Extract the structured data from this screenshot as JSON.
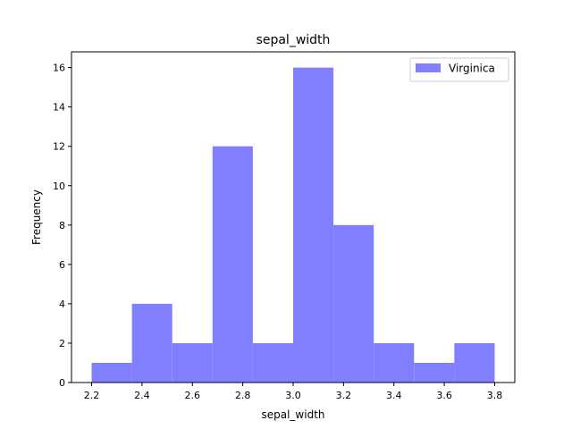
{
  "chart_data": {
    "type": "bar",
    "title": "sepal_width",
    "xlabel": "sepal_width",
    "ylabel": "Frequency",
    "bin_edges": [
      2.2,
      2.36,
      2.52,
      2.68,
      2.84,
      3.0,
      3.16,
      3.32,
      3.48,
      3.64,
      3.8
    ],
    "series": [
      {
        "name": "Virginica",
        "values": [
          1,
          4,
          2,
          12,
          2,
          16,
          8,
          2,
          1,
          2
        ],
        "color": "#8080ff"
      }
    ],
    "xlim": [
      2.12,
      3.88
    ],
    "ylim": [
      0,
      16.8
    ],
    "x_ticks": [
      2.2,
      2.4,
      2.6,
      2.8,
      3.0,
      3.2,
      3.4,
      3.6,
      3.8
    ],
    "x_tick_labels": [
      "2.2",
      "2.4",
      "2.6",
      "2.8",
      "3.0",
      "3.2",
      "3.4",
      "3.6",
      "3.8"
    ],
    "y_ticks": [
      0,
      2,
      4,
      6,
      8,
      10,
      12,
      14,
      16
    ],
    "y_tick_labels": [
      "0",
      "2",
      "4",
      "6",
      "8",
      "10",
      "12",
      "14",
      "16"
    ],
    "legend": {
      "position": "top-right",
      "entries": [
        "Virginica"
      ]
    },
    "grid": false
  }
}
